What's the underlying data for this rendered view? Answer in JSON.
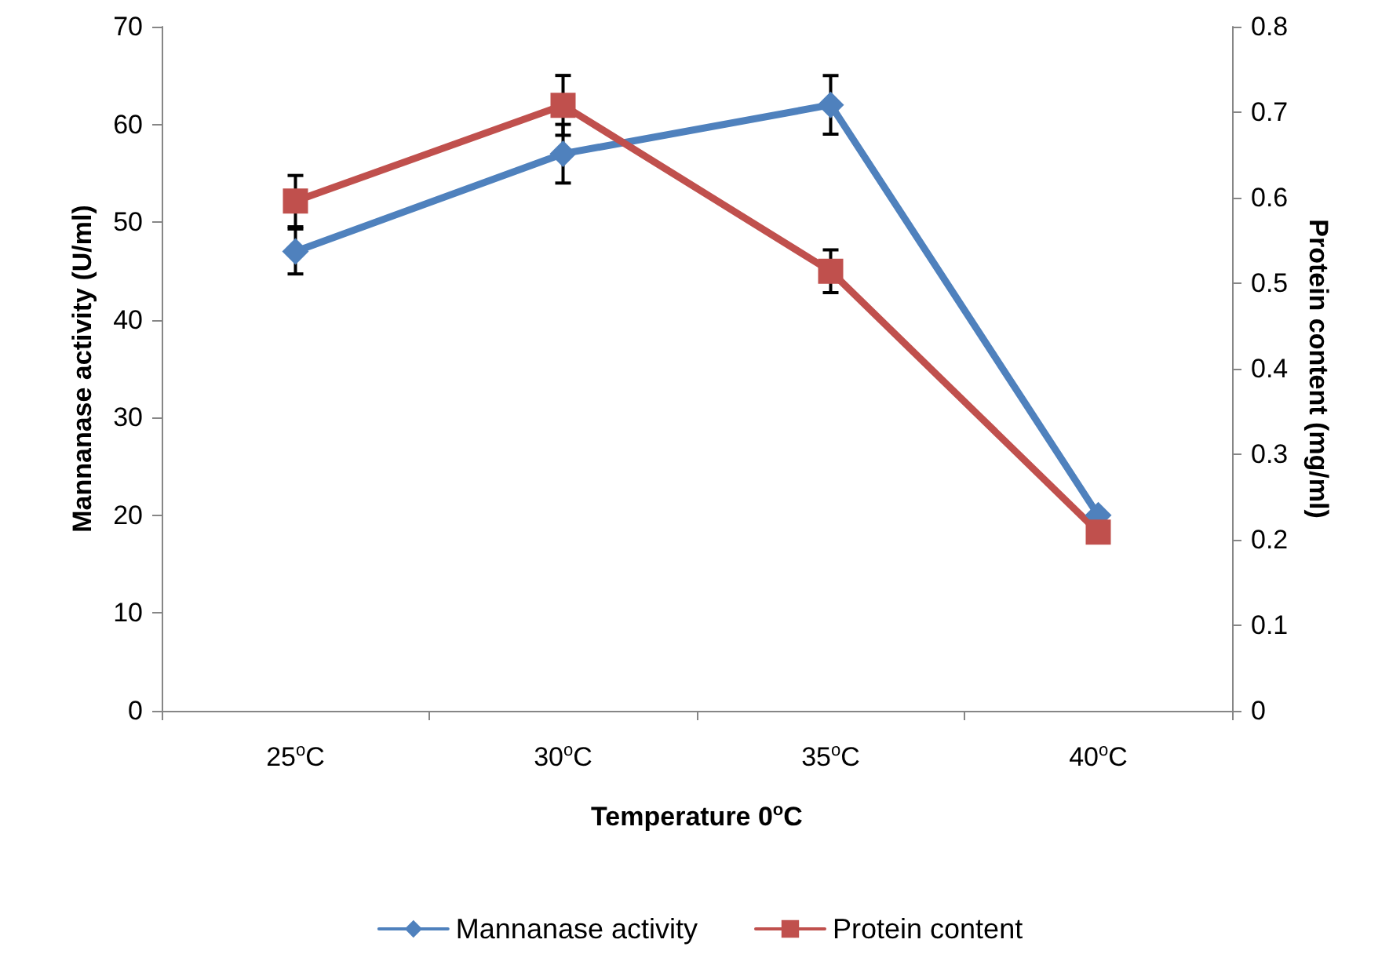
{
  "chart_data": {
    "type": "line",
    "xlabel": "Temperature 0$^{o}$C",
    "ylabel": "Mannanase activity (U/ml)",
    "y2label": "Protein content (mg/ml)",
    "categories": [
      "25$^{o}$C",
      "30$^{o}$C",
      "35$^{o}$C",
      "40$^{o}$C"
    ],
    "series": [
      {
        "name": "Mannanase activity",
        "color": "#4f81bd",
        "marker": "diamond",
        "values": [
          47,
          57,
          62,
          20
        ],
        "errors": [
          2.3,
          3,
          3,
          null
        ]
      },
      {
        "name": "Protein content",
        "color": "#c0504d",
        "marker": "square",
        "axis": "y2",
        "values": [
          0.596,
          0.708,
          0.514,
          0.209
        ],
        "errors": [
          0.03,
          0.035,
          0.025,
          null
        ]
      }
    ],
    "ylim": [
      0,
      70
    ],
    "yticks": [
      0,
      10,
      20,
      30,
      40,
      50,
      60,
      70
    ],
    "y2lim": [
      0,
      0.8
    ],
    "y2ticks": [
      0,
      0.1,
      0.2,
      0.3,
      0.4,
      0.5,
      0.6,
      0.7,
      0.8
    ],
    "grid": false,
    "legend": "bottom"
  }
}
